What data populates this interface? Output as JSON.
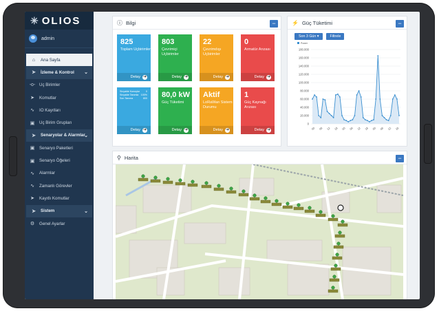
{
  "brand": {
    "name": "OLIOS"
  },
  "user": {
    "name": "admin"
  },
  "sidebar": {
    "items": [
      {
        "label": "Ana Sayfa",
        "icon": "home-icon"
      },
      {
        "label": "İzleme & Kontrol",
        "icon": "send-icon"
      },
      {
        "label": "Uç Birimler",
        "icon": "node-icon"
      },
      {
        "label": "Komutlar",
        "icon": "send-icon"
      },
      {
        "label": "IO Kayıtları",
        "icon": "pulse-icon"
      },
      {
        "label": "Uç Birim Grupları",
        "icon": "group-icon"
      },
      {
        "label": "Senaryolar & Alarmlar",
        "icon": "send-icon"
      },
      {
        "label": "Senaryo Paketleri",
        "icon": "group-icon"
      },
      {
        "label": "Senaryo Öğeleri",
        "icon": "group-icon"
      },
      {
        "label": "Alarmlar",
        "icon": "pulse-icon"
      },
      {
        "label": "Zamanlı Görevler",
        "icon": "pulse-icon"
      },
      {
        "label": "Kayıtlı Komutlar",
        "icon": "send-icon"
      },
      {
        "label": "Sistem",
        "icon": "send-icon"
      },
      {
        "label": "Genel Ayarlar",
        "icon": "gears-icon"
      }
    ]
  },
  "bilgi": {
    "title": "Bilgi",
    "detail_label": "Detay",
    "cards": [
      {
        "value": "825",
        "label": "Toplam Uçbirimler",
        "color": "#3aa9e0"
      },
      {
        "value": "803",
        "label": "Çevrimiçi Uçbirimler",
        "color": "#2eb04f"
      },
      {
        "value": "22",
        "label": "Çevrimdışı Uçbirimler",
        "color": "#f5a623"
      },
      {
        "value": "0",
        "label": "Armatür Arızası",
        "color": "#e94b4b"
      },
      {
        "value": "",
        "label": "",
        "color": "#3aa9e0",
        "rows": [
          {
            "k": "Sinyalde Konuşlar",
            "v": "0"
          },
          {
            "k": "Sinyalde Tanımla",
            "v": "100%"
          },
          {
            "k": "Son Tanıma",
            "v": "800"
          }
        ]
      },
      {
        "value": "80,0 kW",
        "label": "Güç Tüketimi",
        "color": "#2eb04f"
      },
      {
        "value": "Aktif",
        "label": "LoRaWan Sistem Durumu",
        "color": "#f5a623"
      },
      {
        "value": "1",
        "label": "Güç Kaynağı Arızası",
        "color": "#e94b4b"
      }
    ]
  },
  "power": {
    "title": "Güç Tüketimi",
    "range_select": "Son 3 Gün",
    "filter_button": "Filtrele"
  },
  "chart_data": {
    "type": "area",
    "series": [
      {
        "name": "Power",
        "color": "#3a8fd0",
        "values": [
          60000,
          70000,
          65000,
          20000,
          15000,
          60000,
          58000,
          30000,
          25000,
          20000,
          15000,
          70000,
          72000,
          65000,
          20000,
          10000,
          8000,
          5000,
          8000,
          10000,
          20000,
          70000,
          80000,
          65000,
          15000,
          10000,
          8000,
          5000,
          8000,
          10000,
          60000,
          165000,
          60000,
          20000,
          15000,
          10000,
          8000,
          20000,
          60000,
          70000,
          60000,
          20000
        ]
      }
    ],
    "ylim": [
      0,
      180000
    ],
    "y_ticks": [
      "0",
      "20.000",
      "40.000",
      "60.000",
      "80.000",
      "100.000",
      "120.000",
      "140.000",
      "160.000",
      "180.000"
    ],
    "x_ticks": [
      "00",
      "06",
      "12",
      "18",
      "00",
      "06",
      "12",
      "18",
      "00",
      "06",
      "12",
      "18"
    ],
    "grid": true,
    "legend": "top-left"
  },
  "map": {
    "title": "Harita"
  }
}
